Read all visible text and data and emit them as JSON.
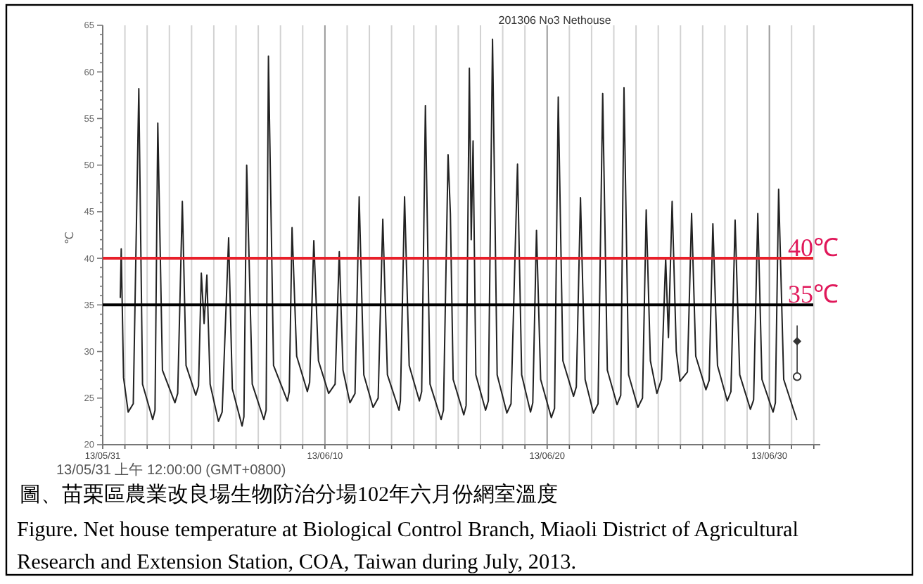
{
  "chart_data": {
    "type": "line",
    "title": "201306 No3 Nethouse",
    "ylabel": "℃",
    "x": [
      "2013-05-31T19:00",
      "2013-05-31T20:00",
      "2013-05-31T22:30",
      "2013-06-01T03:30",
      "2013-06-01T09:00",
      "2013-06-01T15:00",
      "2013-06-01T19:00",
      "2013-06-02T06:00",
      "2013-06-02T08:30",
      "2013-06-02T11:30",
      "2013-06-02T16:30",
      "2013-06-03T06:00",
      "2013-06-03T09:00",
      "2013-06-03T14:00",
      "2013-06-03T18:00",
      "2013-06-04T04:30",
      "2013-06-04T07:30",
      "2013-06-04T10:30",
      "2013-06-04T13:30",
      "2013-06-04T16:30",
      "2013-06-04T20:00",
      "2013-06-05T05:00",
      "2013-06-05T09:00",
      "2013-06-05T16:00",
      "2013-06-05T20:00",
      "2013-06-06T06:30",
      "2013-06-06T08:30",
      "2013-06-06T11:30",
      "2013-06-06T17:30",
      "2013-06-07T06:00",
      "2013-06-07T08:30",
      "2013-06-07T11:00",
      "2013-06-07T16:30",
      "2013-06-08T07:30",
      "2013-06-08T09:30",
      "2013-06-08T12:30",
      "2013-06-08T17:30",
      "2013-06-09T05:00",
      "2013-06-09T07:30",
      "2013-06-09T12:00",
      "2013-06-09T17:00",
      "2013-06-10T04:00",
      "2013-06-10T11:00",
      "2013-06-10T15:30",
      "2013-06-10T19:30",
      "2013-06-11T03:00",
      "2013-06-11T08:30",
      "2013-06-11T13:00",
      "2013-06-11T18:00",
      "2013-06-12T04:00",
      "2013-06-12T09:30",
      "2013-06-12T14:30",
      "2013-06-12T19:30",
      "2013-06-13T08:00",
      "2013-06-13T09:30",
      "2013-06-13T14:00",
      "2013-06-13T19:00",
      "2013-06-14T06:00",
      "2013-06-14T08:30",
      "2013-06-14T12:30",
      "2013-06-14T17:30",
      "2013-06-15T05:30",
      "2013-06-15T08:00",
      "2013-06-15T13:00",
      "2013-06-15T15:30",
      "2013-06-15T18:30",
      "2013-06-16T06:00",
      "2013-06-16T08:30",
      "2013-06-16T12:00",
      "2013-06-16T14:00",
      "2013-06-16T16:00",
      "2013-06-16T19:00",
      "2013-06-17T05:30",
      "2013-06-17T08:30",
      "2013-06-17T13:00",
      "2013-06-17T18:00",
      "2013-06-18T04:30",
      "2013-06-18T09:00",
      "2013-06-18T16:00",
      "2013-06-18T20:30",
      "2013-06-19T06:00",
      "2013-06-19T08:30",
      "2013-06-19T12:30",
      "2013-06-19T17:00",
      "2013-06-20T04:30",
      "2013-06-20T08:00",
      "2013-06-20T12:00",
      "2013-06-20T17:00",
      "2013-06-21T04:30",
      "2013-06-21T07:30",
      "2013-06-21T12:00",
      "2013-06-21T17:00",
      "2013-06-22T02:00",
      "2013-06-22T07:00",
      "2013-06-22T12:00",
      "2013-06-22T17:00",
      "2013-06-23T03:30",
      "2013-06-23T07:30",
      "2013-06-23T11:00",
      "2013-06-23T16:00",
      "2013-06-24T02:00",
      "2013-06-24T07:00",
      "2013-06-24T11:00",
      "2013-06-24T15:30",
      "2013-06-24T22:30",
      "2013-06-25T03:30",
      "2013-06-25T08:00",
      "2013-06-25T11:00",
      "2013-06-25T15:00",
      "2013-06-25T19:30",
      "2013-06-25T23:30",
      "2013-06-26T07:30",
      "2013-06-26T12:00",
      "2013-06-26T16:30",
      "2013-06-27T03:30",
      "2013-06-27T07:00",
      "2013-06-27T11:00",
      "2013-06-27T16:00",
      "2013-06-28T02:30",
      "2013-06-28T06:30",
      "2013-06-28T11:00",
      "2013-06-28T16:00",
      "2013-06-29T03:30",
      "2013-06-29T07:00",
      "2013-06-29T11:30",
      "2013-06-29T16:00",
      "2013-06-30T04:00",
      "2013-06-30T06:30",
      "2013-06-30T10:00",
      "2013-06-30T15:30",
      "2013-07-01T05:30"
    ],
    "series": [
      {
        "color": "#222222",
        "values": [
          35.8,
          41.0,
          27.2,
          23.5,
          24.4,
          58.2,
          26.5,
          22.7,
          23.7,
          54.5,
          28.0,
          24.5,
          25.5,
          46.1,
          28.5,
          25.3,
          26.3,
          38.4,
          33.0,
          38.2,
          26.5,
          22.5,
          23.5,
          42.2,
          26.0,
          22.0,
          23.0,
          50.0,
          26.5,
          22.7,
          23.7,
          61.7,
          28.5,
          24.7,
          25.7,
          43.3,
          29.5,
          25.7,
          26.7,
          41.9,
          29.0,
          25.5,
          26.5,
          40.7,
          28.0,
          24.5,
          25.5,
          46.6,
          27.5,
          24.0,
          25.0,
          44.2,
          27.5,
          23.7,
          24.7,
          46.6,
          28.5,
          24.7,
          25.7,
          56.4,
          26.5,
          22.7,
          23.7,
          51.1,
          44.8,
          27.0,
          23.2,
          24.2,
          60.4,
          42.0,
          52.6,
          27.5,
          23.7,
          24.7,
          63.5,
          27.5,
          23.4,
          24.4,
          50.1,
          27.5,
          23.5,
          24.5,
          43.0,
          27.0,
          22.9,
          23.9,
          57.3,
          29.0,
          25.2,
          26.2,
          46.5,
          27.0,
          23.4,
          24.4,
          57.7,
          28.0,
          24.3,
          25.3,
          58.3,
          27.5,
          24.0,
          25.0,
          45.2,
          29.0,
          25.5,
          27.0,
          40.0,
          31.5,
          46.1,
          30.0,
          26.8,
          27.8,
          44.8,
          29.5,
          25.9,
          26.9,
          43.7,
          28.5,
          24.7,
          25.7,
          44.1,
          27.5,
          23.8,
          24.8,
          44.8,
          27.0,
          23.5,
          24.5,
          47.4,
          27.0,
          22.7
        ]
      },
      {
        "type": "scatter",
        "marker": "diamond",
        "color": "#333333",
        "x": [
          "2013-07-01T06:00"
        ],
        "values": [
          31.1
        ],
        "errors": [
          [
            27.3,
            32.8
          ]
        ]
      },
      {
        "type": "scatter",
        "marker": "circle",
        "color": "#333333",
        "x": [
          "2013-07-01T06:00"
        ],
        "values": [
          27.3
        ]
      }
    ],
    "marker": "none",
    "xlim": [
      "2013-05-31T00:00",
      "2013-07-02T07:00"
    ],
    "xticks": [
      {
        "value": "2013-05-31",
        "label": "13/05/31"
      },
      {
        "value": "2013-06-01",
        "label": null
      },
      {
        "value": "2013-06-02",
        "label": null
      },
      {
        "value": "2013-06-03",
        "label": null
      },
      {
        "value": "2013-06-04",
        "label": null
      },
      {
        "value": "2013-06-05",
        "label": null
      },
      {
        "value": "2013-06-06",
        "label": null
      },
      {
        "value": "2013-06-07",
        "label": null
      },
      {
        "value": "2013-06-08",
        "label": null
      },
      {
        "value": "2013-06-09",
        "label": null
      },
      {
        "value": "2013-06-10",
        "label": "13/06/10"
      },
      {
        "value": "2013-06-11",
        "label": null
      },
      {
        "value": "2013-06-12",
        "label": null
      },
      {
        "value": "2013-06-13",
        "label": null
      },
      {
        "value": "2013-06-14",
        "label": null
      },
      {
        "value": "2013-06-15",
        "label": null
      },
      {
        "value": "2013-06-16",
        "label": null
      },
      {
        "value": "2013-06-17",
        "label": null
      },
      {
        "value": "2013-06-18",
        "label": null
      },
      {
        "value": "2013-06-19",
        "label": null
      },
      {
        "value": "2013-06-20",
        "label": "13/06/20"
      },
      {
        "value": "2013-06-21",
        "label": null
      },
      {
        "value": "2013-06-22",
        "label": null
      },
      {
        "value": "2013-06-23",
        "label": null
      },
      {
        "value": "2013-06-24",
        "label": null
      },
      {
        "value": "2013-06-25",
        "label": null
      },
      {
        "value": "2013-06-26",
        "label": null
      },
      {
        "value": "2013-06-27",
        "label": null
      },
      {
        "value": "2013-06-28",
        "label": null
      },
      {
        "value": "2013-06-29",
        "label": null
      },
      {
        "value": "2013-06-30",
        "label": "13/06/30"
      },
      {
        "value": "2013-07-01",
        "label": null
      },
      {
        "value": "2013-07-02",
        "label": null
      }
    ],
    "ylim": [
      20,
      65
    ],
    "yticks": [
      20,
      {
        "value": 21,
        "label": null
      },
      {
        "value": 22,
        "label": null
      },
      {
        "value": 23,
        "label": null
      },
      {
        "value": 24,
        "label": null
      },
      25,
      {
        "value": 26,
        "label": null
      },
      {
        "value": 27,
        "label": null
      },
      {
        "value": 28,
        "label": null
      },
      {
        "value": 29,
        "label": null
      },
      30,
      {
        "value": 31,
        "label": null
      },
      {
        "value": 32,
        "label": null
      },
      {
        "value": 33,
        "label": null
      },
      {
        "value": 34,
        "label": null
      },
      35,
      {
        "value": 36,
        "label": null
      },
      {
        "value": 37,
        "label": null
      },
      {
        "value": 38,
        "label": null
      },
      {
        "value": 39,
        "label": null
      },
      40,
      {
        "value": 41,
        "label": null
      },
      {
        "value": 42,
        "label": null
      },
      {
        "value": 43,
        "label": null
      },
      {
        "value": 44,
        "label": null
      },
      45,
      {
        "value": 46,
        "label": null
      },
      {
        "value": 47,
        "label": null
      },
      {
        "value": 48,
        "label": null
      },
      {
        "value": 49,
        "label": null
      },
      50,
      {
        "value": 51,
        "label": null
      },
      {
        "value": 52,
        "label": null
      },
      {
        "value": 53,
        "label": null
      },
      {
        "value": 54,
        "label": null
      },
      55,
      {
        "value": 56,
        "label": null
      },
      {
        "value": 57,
        "label": null
      },
      {
        "value": 58,
        "label": null
      },
      {
        "value": 59,
        "label": null
      },
      60,
      {
        "value": 61,
        "label": null
      },
      {
        "value": 62,
        "label": null
      },
      {
        "value": 63,
        "label": null
      },
      {
        "value": 64,
        "label": null
      },
      65
    ],
    "grid": "x",
    "ref_lines": [
      {
        "axis": "y",
        "value": 40,
        "label": "40℃",
        "color": "#e8202a"
      },
      {
        "axis": "y",
        "value": 35,
        "label": "35℃",
        "color": "#000000"
      }
    ],
    "annotations": [
      "13/05/31 上午 12:00:00 (GMT+0800)",
      "圖、苗栗區農業改良場生物防治分場102年六月份網室溫度",
      "Figure. Net house temperature at Biological Control Branch, Miaoli District of Agricultural Research and Extension Station, COA, Taiwan during July, 2013."
    ]
  }
}
